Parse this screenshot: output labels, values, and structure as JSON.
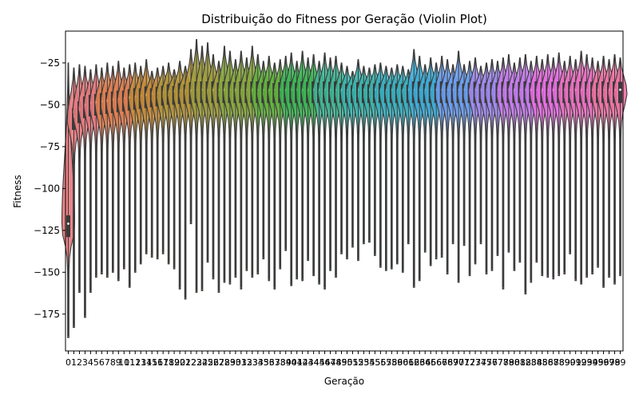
{
  "chart_data": {
    "type": "violin",
    "title": "Distribuição do Fitness por Geração (Violin Plot)",
    "xlabel": "Geração",
    "ylabel": "Fitness",
    "ylim": [
      -197,
      -6
    ],
    "yticks": [
      -175,
      -150,
      -125,
      -100,
      -75,
      -50,
      -25
    ],
    "categories": [
      "0",
      "1",
      "2",
      "3",
      "4",
      "5",
      "6",
      "7",
      "8",
      "9",
      "10",
      "11",
      "12",
      "13",
      "14",
      "15",
      "16",
      "17",
      "18",
      "19",
      "20",
      "21",
      "22",
      "23",
      "24",
      "25",
      "26",
      "27",
      "28",
      "29",
      "30",
      "31",
      "32",
      "33",
      "34",
      "35",
      "36",
      "37",
      "38",
      "39",
      "40",
      "41",
      "42",
      "43",
      "44",
      "45",
      "46",
      "47",
      "48",
      "49",
      "50",
      "51",
      "52",
      "53",
      "54",
      "55",
      "56",
      "57",
      "58",
      "59",
      "60",
      "61",
      "62",
      "63",
      "64",
      "65",
      "66",
      "67",
      "68",
      "69",
      "70",
      "71",
      "72",
      "73",
      "74",
      "75",
      "76",
      "77",
      "78",
      "79",
      "80",
      "81",
      "82",
      "83",
      "84",
      "85",
      "86",
      "87",
      "88",
      "89",
      "90",
      "91",
      "92",
      "93",
      "94",
      "95",
      "96",
      "97",
      "98",
      "99"
    ],
    "median": [
      -121,
      -57,
      -53,
      -50,
      -49,
      -48.5,
      -48,
      -47.5,
      -47,
      -46.5,
      -46,
      -45.5,
      -45,
      -44.5,
      -44,
      -43.5,
      -43,
      -42.5,
      -42,
      -42,
      -41.5,
      -41.5,
      -41.5,
      -41,
      -41,
      -41,
      -41,
      -41,
      -41,
      -41,
      -41,
      -41,
      -41,
      -41,
      -41,
      -41,
      -41,
      -41,
      -41,
      -41,
      -41,
      -41,
      -41,
      -41,
      -41,
      -41,
      -41,
      -41,
      -41,
      -41,
      -41,
      -41,
      -41,
      -41,
      -41,
      -41,
      -41,
      -41,
      -41,
      -41,
      -41,
      -41,
      -41,
      -41,
      -41,
      -41,
      -41,
      -41,
      -41,
      -41,
      -41,
      -41,
      -41,
      -41,
      -41,
      -41,
      -41,
      -41,
      -41,
      -41,
      -41,
      -41,
      -41,
      -41,
      -41,
      -41,
      -41,
      -41,
      -41,
      -41,
      -41,
      -41,
      -41,
      -41,
      -41,
      -41,
      -41,
      -41,
      -41,
      -41
    ],
    "upper": [
      -25,
      -28,
      -26,
      -27,
      -29,
      -26,
      -28,
      -25,
      -27,
      -24,
      -28,
      -26,
      -25,
      -27,
      -23,
      -30,
      -28,
      -27,
      -25,
      -29,
      -24,
      -27,
      -17,
      -11,
      -15,
      -13,
      -20,
      -24,
      -15,
      -18,
      -23,
      -18,
      -22,
      -15,
      -20,
      -24,
      -21,
      -25,
      -23,
      -21,
      -19,
      -24,
      -18,
      -22,
      -20,
      -24,
      -19,
      -22,
      -21,
      -25,
      -27,
      -30,
      -23,
      -27,
      -28,
      -26,
      -25,
      -27,
      -28,
      -26,
      -27,
      -29,
      -17,
      -21,
      -26,
      -22,
      -25,
      -21,
      -23,
      -26,
      -18,
      -26,
      -24,
      -22,
      -27,
      -25,
      -23,
      -24,
      -22,
      -20,
      -25,
      -22,
      -20,
      -24,
      -21,
      -23,
      -20,
      -22,
      -19,
      -24,
      -21,
      -23,
      -18,
      -20,
      -22,
      -24,
      -21,
      -23,
      -20,
      -22
    ],
    "lower": [
      -189,
      -183,
      -162,
      -177,
      -162,
      -153,
      -151,
      -153,
      -150,
      -155,
      -148,
      -159,
      -150,
      -145,
      -139,
      -141,
      -142,
      -139,
      -145,
      -148,
      -160,
      -166,
      -121,
      -162,
      -161,
      -144,
      -154,
      -162,
      -156,
      -157,
      -153,
      -160,
      -149,
      -153,
      -151,
      -142,
      -155,
      -160,
      -148,
      -137,
      -158,
      -154,
      -155,
      -143,
      -152,
      -157,
      -160,
      -149,
      -153,
      -139,
      -142,
      -135,
      -143,
      -133,
      -132,
      -140,
      -147,
      -149,
      -148,
      -145,
      -150,
      -133,
      -159,
      -155,
      -138,
      -146,
      -142,
      -141,
      -151,
      -133,
      -156,
      -134,
      -152,
      -145,
      -133,
      -151,
      -149,
      -140,
      -160,
      -138,
      -149,
      -144,
      -163,
      -156,
      -144,
      -152,
      -153,
      -154,
      -152,
      -151,
      -139,
      -155,
      -157,
      -153,
      -151,
      -147,
      -159,
      -153,
      -157,
      -152
    ],
    "colors": [
      "#e7797d",
      "#e27f51",
      "#c98d3a",
      "#b69639",
      "#a19f3d",
      "#88a83d",
      "#63b23d",
      "#3cb754",
      "#3fb695",
      "#3ab5ad",
      "#38b2c2",
      "#3caed9",
      "#6b9ef2",
      "#a18bf2",
      "#c87cef",
      "#e86ee3",
      "#ec70c2",
      "#ee72a4"
    ],
    "axis": {
      "show_y_grid": false,
      "show_x_grid": false
    }
  }
}
